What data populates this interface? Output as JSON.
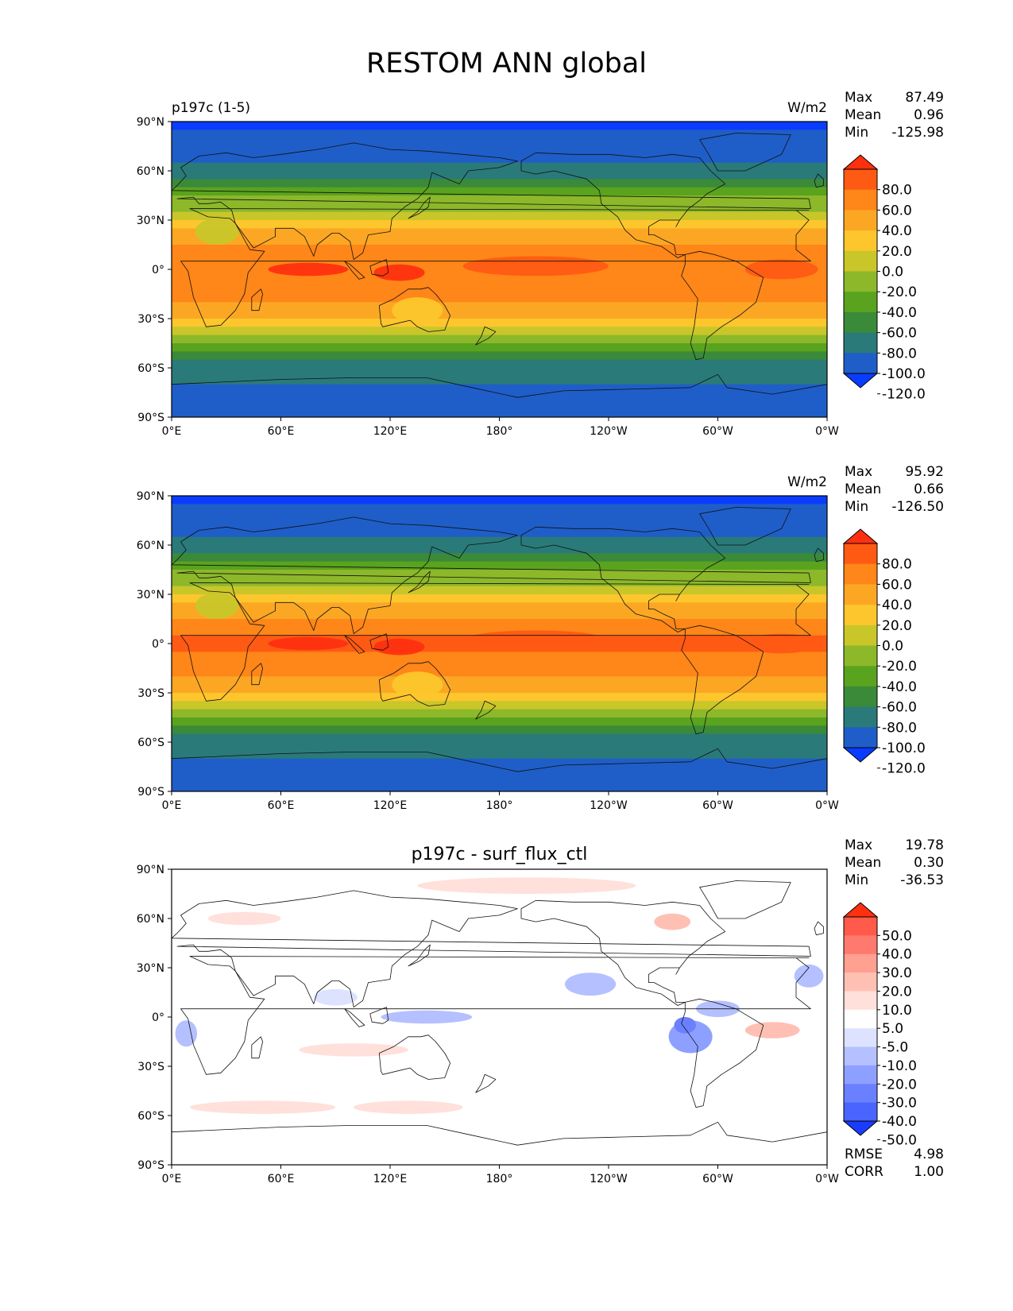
{
  "figure": {
    "title": "RESTOM ANN global"
  },
  "chart_data": [
    {
      "type": "heatmap",
      "label_left": "p197c (1-5)",
      "label_center": "",
      "units": "W/m2",
      "stats": {
        "Max": "87.49",
        "Mean": "0.96",
        "Min": "-125.98"
      },
      "lon_ticks": [
        "0°E",
        "60°E",
        "120°E",
        "180°",
        "120°W",
        "60°W",
        "0°W"
      ],
      "lat_ticks": [
        "90°N",
        "60°N",
        "30°N",
        "0°",
        "30°S",
        "60°S",
        "90°S"
      ],
      "colorbar": {
        "levels": [
          "80.0",
          "60.0",
          "40.0",
          "20.0",
          "0.0",
          "-20.0",
          "-40.0",
          "-60.0",
          "-80.0",
          "-100.0",
          "-120.0"
        ],
        "colors": [
          "#ff3010",
          "#ff5a14",
          "#ff8618",
          "#fca724",
          "#fcc62c",
          "#c9c62a",
          "#8cb82a",
          "#5aa31e",
          "#3a8a3a",
          "#2a7a7a",
          "#1f5ec8",
          "#0a3cff"
        ],
        "extend": "both"
      },
      "zonal_profile_Wm2": [
        {
          "lat": 90,
          "value": -126
        },
        {
          "lat": 70,
          "value": -110
        },
        {
          "lat": 55,
          "value": -80
        },
        {
          "lat": 40,
          "value": -30
        },
        {
          "lat": 25,
          "value": 20
        },
        {
          "lat": 10,
          "value": 50
        },
        {
          "lat": 0,
          "value": 60
        },
        {
          "lat": -15,
          "value": 45
        },
        {
          "lat": -30,
          "value": 20
        },
        {
          "lat": -45,
          "value": -40
        },
        {
          "lat": -60,
          "value": -90
        },
        {
          "lat": -75,
          "value": -110
        },
        {
          "lat": -90,
          "value": -120
        }
      ]
    },
    {
      "type": "heatmap",
      "label_left": "",
      "label_center": "",
      "units": "W/m2",
      "stats": {
        "Max": "95.92",
        "Mean": "0.66",
        "Min": "-126.50"
      },
      "lon_ticks": [
        "0°E",
        "60°E",
        "120°E",
        "180°",
        "120°W",
        "60°W",
        "0°W"
      ],
      "lat_ticks": [
        "90°N",
        "60°N",
        "30°N",
        "0°",
        "30°S",
        "60°S",
        "90°S"
      ],
      "colorbar": {
        "levels": [
          "80.0",
          "60.0",
          "40.0",
          "20.0",
          "0.0",
          "-20.0",
          "-40.0",
          "-60.0",
          "-80.0",
          "-100.0",
          "-120.0"
        ],
        "colors": [
          "#ff3010",
          "#ff5a14",
          "#ff8618",
          "#fca724",
          "#fcc62c",
          "#c9c62a",
          "#8cb82a",
          "#5aa31e",
          "#3a8a3a",
          "#2a7a7a",
          "#1f5ec8",
          "#0a3cff"
        ],
        "extend": "both"
      },
      "zonal_profile_Wm2": [
        {
          "lat": 90,
          "value": -126
        },
        {
          "lat": 70,
          "value": -110
        },
        {
          "lat": 55,
          "value": -80
        },
        {
          "lat": 40,
          "value": -30
        },
        {
          "lat": 25,
          "value": 20
        },
        {
          "lat": 10,
          "value": 55
        },
        {
          "lat": 0,
          "value": 65
        },
        {
          "lat": -15,
          "value": 45
        },
        {
          "lat": -30,
          "value": 20
        },
        {
          "lat": -45,
          "value": -40
        },
        {
          "lat": -60,
          "value": -90
        },
        {
          "lat": -75,
          "value": -110
        },
        {
          "lat": -90,
          "value": -120
        }
      ]
    },
    {
      "type": "heatmap",
      "label_left": "",
      "label_center": "p197c - surf_flux_ctl",
      "units": "",
      "stats": {
        "Max": "19.78",
        "Mean": "0.30",
        "Min": "-36.53"
      },
      "bottom_stats": {
        "RMSE": "4.98",
        "CORR": "1.00"
      },
      "lon_ticks": [
        "0°E",
        "60°E",
        "120°E",
        "180°",
        "120°W",
        "60°W",
        "0°W"
      ],
      "lat_ticks": [
        "90°N",
        "60°N",
        "30°N",
        "0°",
        "30°S",
        "60°S",
        "90°S"
      ],
      "colorbar": {
        "levels": [
          "50.0",
          "40.0",
          "30.0",
          "20.0",
          "10.0",
          "5.0",
          "-5.0",
          "-10.0",
          "-20.0",
          "-30.0",
          "-40.0",
          "-50.0"
        ],
        "colors": [
          "#ff3010",
          "#ff5a4a",
          "#ff7a6e",
          "#ffa090",
          "#ffc0b4",
          "#ffe0da",
          "#ffffff",
          "#dde2ff",
          "#b4c0ff",
          "#8ea0ff",
          "#6a80ff",
          "#4a64ff",
          "#1a3cff"
        ],
        "extend": "both"
      }
    }
  ]
}
